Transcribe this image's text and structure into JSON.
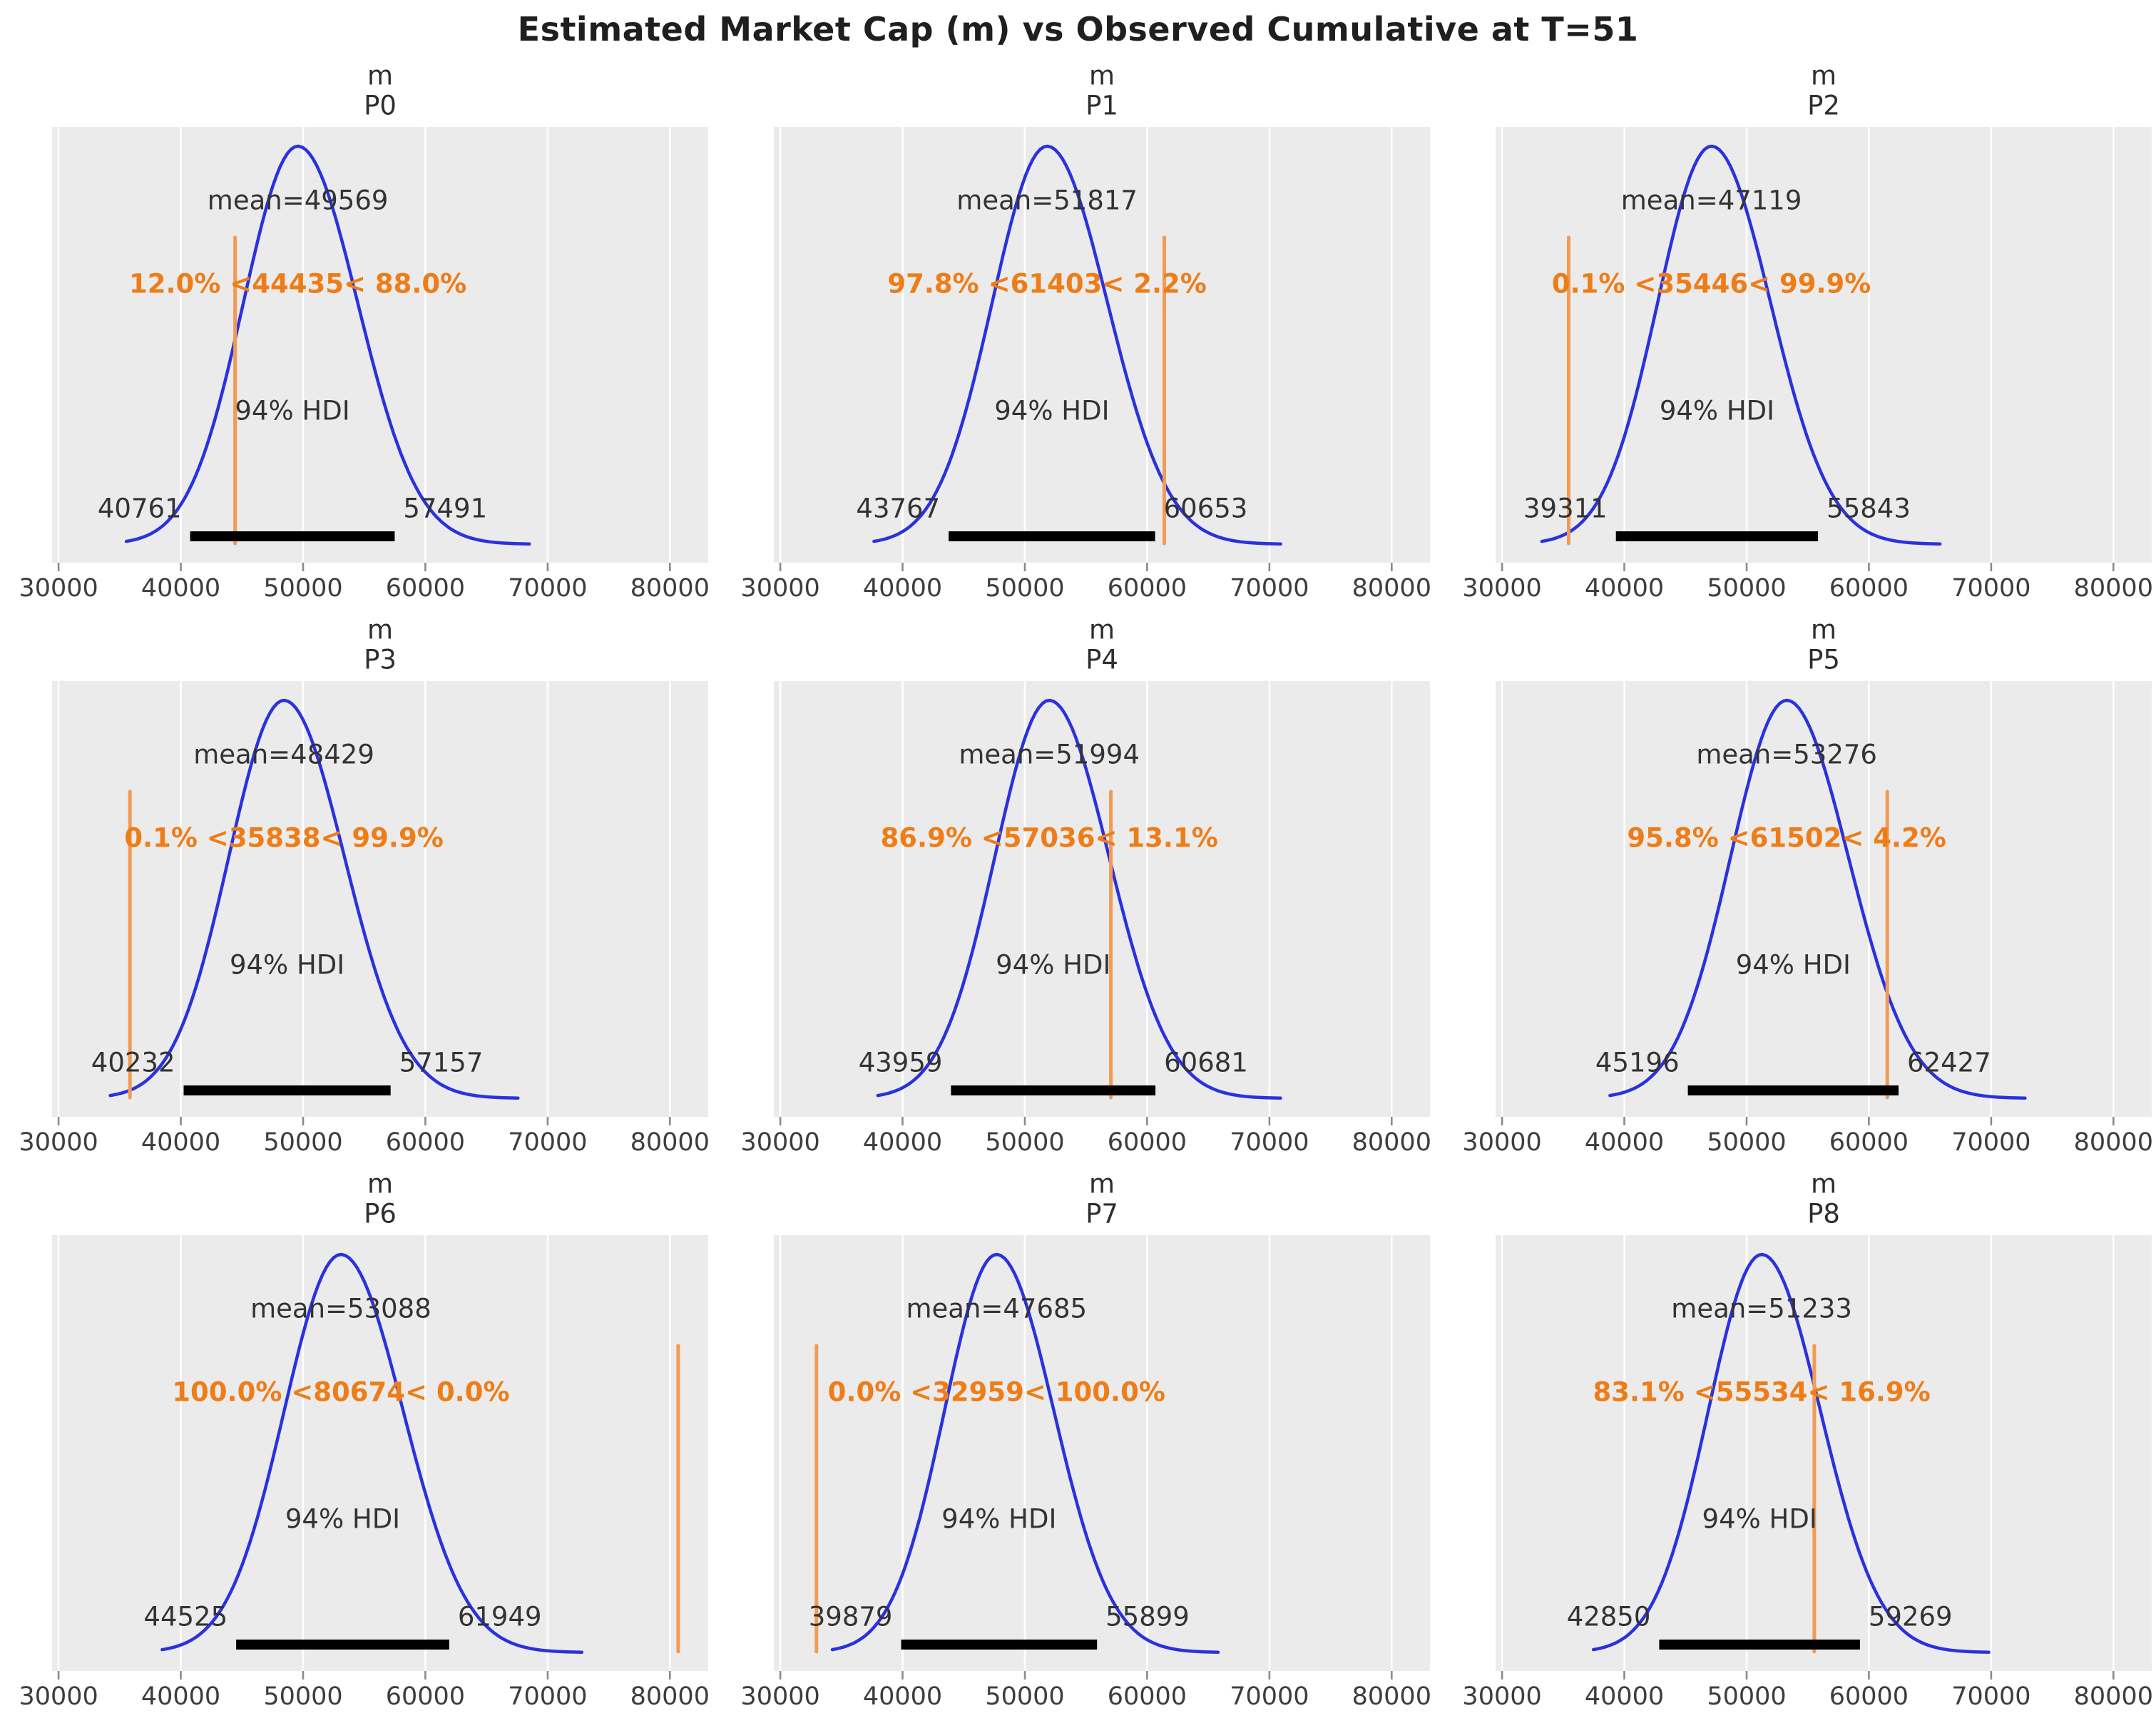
{
  "figure": {
    "title": "Estimated Market Cap (m) vs Observed Cumulative at T=51",
    "background": "#ffffff"
  },
  "colors": {
    "axes_background": "#ebebeb",
    "gridline": "#ffffff",
    "kde_curve": "#2a32dd",
    "ref_line": "#f29b55",
    "ref_text": "#ee7d18",
    "hdi_bar": "#000000",
    "annotation_text": "#333333",
    "tick_text": "#3d3d3d",
    "tick_mark": "#8a8a8a",
    "title_text": "#1f1f1f"
  },
  "chart_data": {
    "type": "line",
    "plot_kind": "posterior_kde_grid",
    "title": "Estimated Market Cap (m) vs Observed Cumulative at T=51",
    "grid": "on",
    "legend": "none",
    "x_axis": {
      "ticks": [
        30000,
        40000,
        50000,
        60000,
        70000,
        80000
      ],
      "tick_labels": [
        "30000",
        "40000",
        "50000",
        "60000",
        "70000",
        "80000"
      ],
      "xlim": [
        29470,
        83130
      ]
    },
    "hdi_probability": "94%",
    "panels": [
      {
        "var_name": "m",
        "coord": "P0",
        "mean": 49569,
        "mean_label": "mean=49569",
        "ref_val": 44435,
        "pct_below": "12.0%",
        "pct_above": "88.0%",
        "ref_label": "12.0% <44435< 88.0%",
        "hdi_low": 40761,
        "hdi_high": 57491,
        "hdi_low_label": "40761",
        "hdi_high_label": "57491",
        "hdi_text": "94% HDI"
      },
      {
        "var_name": "m",
        "coord": "P1",
        "mean": 51817,
        "mean_label": "mean=51817",
        "ref_val": 61403,
        "pct_below": "97.8%",
        "pct_above": "2.2%",
        "ref_label": "97.8% <61403< 2.2%",
        "hdi_low": 43767,
        "hdi_high": 60653,
        "hdi_low_label": "43767",
        "hdi_high_label": "60653",
        "hdi_text": "94% HDI"
      },
      {
        "var_name": "m",
        "coord": "P2",
        "mean": 47119,
        "mean_label": "mean=47119",
        "ref_val": 35446,
        "pct_below": "0.1%",
        "pct_above": "99.9%",
        "ref_label": "0.1% <35446< 99.9%",
        "hdi_low": 39311,
        "hdi_high": 55843,
        "hdi_low_label": "39311",
        "hdi_high_label": "55843",
        "hdi_text": "94% HDI"
      },
      {
        "var_name": "m",
        "coord": "P3",
        "mean": 48429,
        "mean_label": "mean=48429",
        "ref_val": 35838,
        "pct_below": "0.1%",
        "pct_above": "99.9%",
        "ref_label": "0.1% <35838< 99.9%",
        "hdi_low": 40232,
        "hdi_high": 57157,
        "hdi_low_label": "40232",
        "hdi_high_label": "57157",
        "hdi_text": "94% HDI"
      },
      {
        "var_name": "m",
        "coord": "P4",
        "mean": 51994,
        "mean_label": "mean=51994",
        "ref_val": 57036,
        "pct_below": "86.9%",
        "pct_above": "13.1%",
        "ref_label": "86.9% <57036< 13.1%",
        "hdi_low": 43959,
        "hdi_high": 60681,
        "hdi_low_label": "43959",
        "hdi_high_label": "60681",
        "hdi_text": "94% HDI"
      },
      {
        "var_name": "m",
        "coord": "P5",
        "mean": 53276,
        "mean_label": "mean=53276",
        "ref_val": 61502,
        "pct_below": "95.8%",
        "pct_above": "4.2%",
        "ref_label": "95.8% <61502< 4.2%",
        "hdi_low": 45196,
        "hdi_high": 62427,
        "hdi_low_label": "45196",
        "hdi_high_label": "62427",
        "hdi_text": "94% HDI"
      },
      {
        "var_name": "m",
        "coord": "P6",
        "mean": 53088,
        "mean_label": "mean=53088",
        "ref_val": 80674,
        "pct_below": "100.0%",
        "pct_above": "0.0%",
        "ref_label": "100.0% <80674< 0.0%",
        "hdi_low": 44525,
        "hdi_high": 61949,
        "hdi_low_label": "44525",
        "hdi_high_label": "61949",
        "hdi_text": "94% HDI"
      },
      {
        "var_name": "m",
        "coord": "P7",
        "mean": 47685,
        "mean_label": "mean=47685",
        "ref_val": 32959,
        "pct_below": "0.0%",
        "pct_above": "100.0%",
        "ref_label": "0.0% <32959< 100.0%",
        "hdi_low": 39879,
        "hdi_high": 55899,
        "hdi_low_label": "39879",
        "hdi_high_label": "55899",
        "hdi_text": "94% HDI"
      },
      {
        "var_name": "m",
        "coord": "P8",
        "mean": 51233,
        "mean_label": "mean=51233",
        "ref_val": 55534,
        "pct_below": "83.1%",
        "pct_above": "16.9%",
        "ref_label": "83.1% <55534< 16.9%",
        "hdi_low": 42850,
        "hdi_high": 59269,
        "hdi_low_label": "42850",
        "hdi_high_label": "59269",
        "hdi_text": "94% HDI"
      }
    ]
  }
}
